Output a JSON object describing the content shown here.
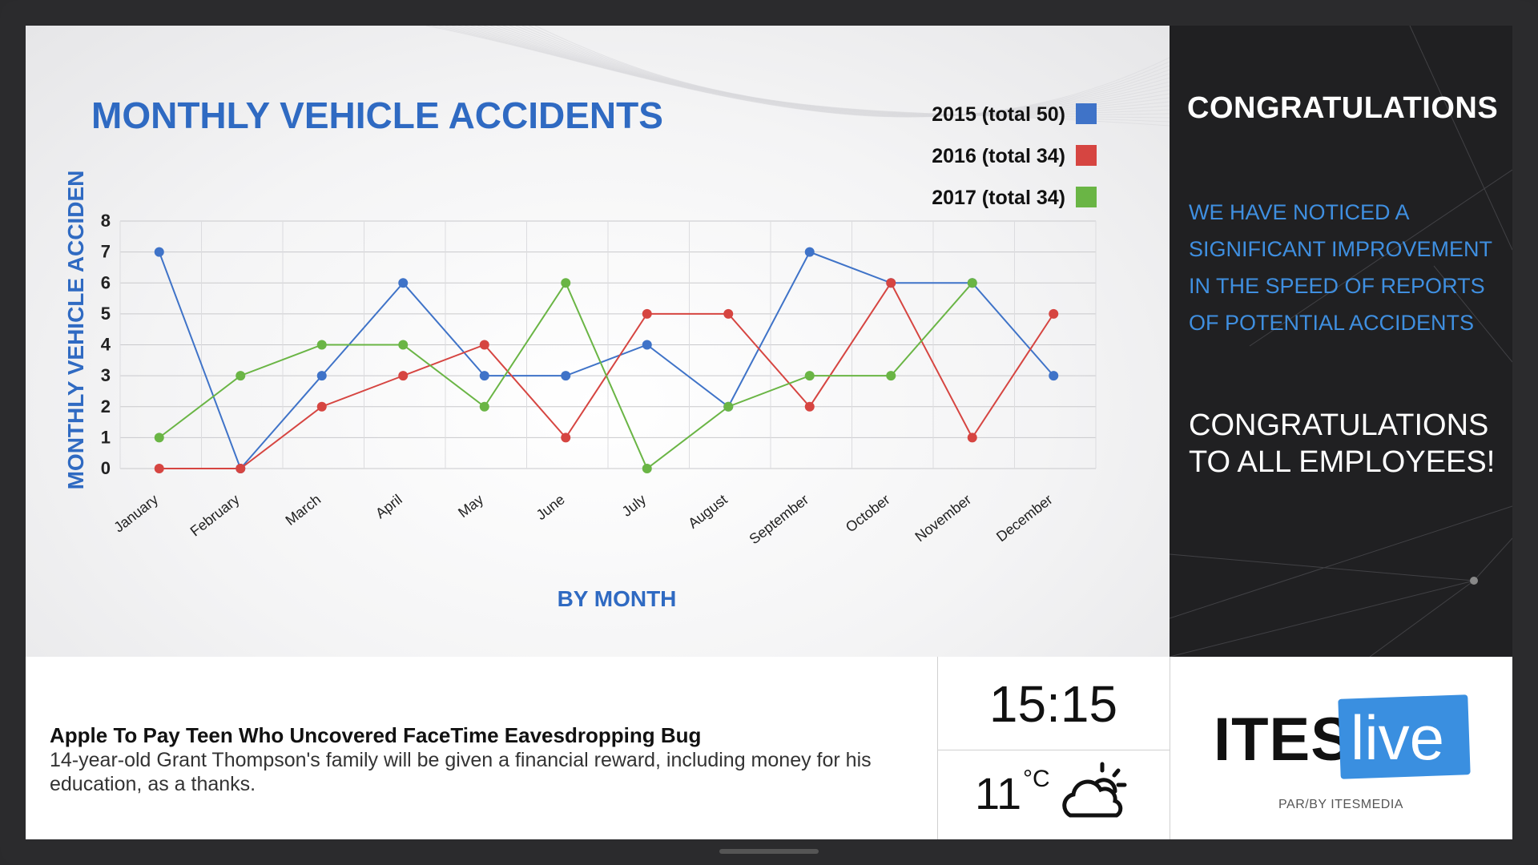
{
  "chart_data": {
    "type": "line",
    "title": "MONTHLY VEHICLE ACCIDENTS",
    "xlabel": "BY MONTH",
    "ylabel": "MONTHLY VEHICLE ACCIDEN",
    "categories": [
      "January",
      "February",
      "March",
      "April",
      "May",
      "June",
      "July",
      "August",
      "September",
      "October",
      "November",
      "December"
    ],
    "ylim": [
      0,
      8
    ],
    "yticks": [
      0,
      1,
      2,
      3,
      4,
      5,
      6,
      7,
      8
    ],
    "grid": true,
    "legend": "top-right",
    "series": [
      {
        "name": "2015 (total 50)",
        "color": "#3f73c8",
        "values": [
          7,
          0,
          3,
          6,
          3,
          3,
          4,
          2,
          7,
          6,
          6,
          3
        ]
      },
      {
        "name": "2016 (total 34)",
        "color": "#d64541",
        "values": [
          0,
          0,
          2,
          3,
          4,
          1,
          5,
          5,
          2,
          6,
          1,
          5
        ]
      },
      {
        "name": "2017 (total 34)",
        "color": "#6ab545",
        "values": [
          1,
          3,
          4,
          4,
          2,
          6,
          0,
          2,
          3,
          3,
          6,
          null
        ]
      }
    ]
  },
  "side_panel": {
    "title": "CONGRATULATIONS",
    "message_lines": [
      "WE HAVE NOTICED A",
      "SIGNIFICANT IMPROVEMENT",
      "IN THE SPEED OF REPORTS",
      "OF POTENTIAL ACCIDENTS"
    ],
    "congrats_lines": [
      "CONGRATULATIONS",
      "TO ALL EMPLOYEES!"
    ]
  },
  "news": {
    "headline": "Apple To Pay Teen Who Uncovered FaceTime Eavesdropping Bug",
    "body": "14-year-old Grant Thompson's family will be given a financial reward, including money for his education, as a thanks."
  },
  "clock": {
    "time": "15:15"
  },
  "weather": {
    "temperature": "11",
    "unit": "°C",
    "icon": "partly-cloudy-icon"
  },
  "logo": {
    "word": "ITES",
    "highlight": "live",
    "tagline": "PAR/BY ITESMEDIA",
    "accent": "#3a8fe0"
  }
}
